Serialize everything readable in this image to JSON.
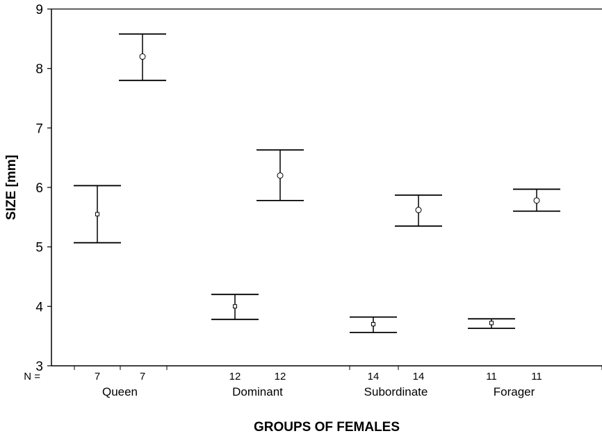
{
  "chart_data": {
    "type": "errorbar",
    "title": "",
    "xlabel": "GROUPS OF FEMALES",
    "ylabel": "SIZE [mm]",
    "ylim": [
      3,
      9
    ],
    "yticks": [
      "3",
      "4",
      "5",
      "6",
      "7",
      "8",
      "9"
    ],
    "n_prefix": "N =",
    "grid": false,
    "legend": "none",
    "groups": [
      {
        "name": "Queen",
        "points": [
          {
            "n": "7",
            "mean": 5.55,
            "low": 5.07,
            "high": 6.03,
            "marker": "square"
          },
          {
            "n": "7",
            "mean": 8.2,
            "low": 7.8,
            "high": 8.58,
            "marker": "circle"
          }
        ]
      },
      {
        "name": "Dominant",
        "points": [
          {
            "n": "12",
            "mean": 4.0,
            "low": 3.78,
            "high": 4.2,
            "marker": "square"
          },
          {
            "n": "12",
            "mean": 6.2,
            "low": 5.78,
            "high": 6.63,
            "marker": "circle"
          }
        ]
      },
      {
        "name": "Subordinate",
        "points": [
          {
            "n": "14",
            "mean": 3.7,
            "low": 3.56,
            "high": 3.82,
            "marker": "square"
          },
          {
            "n": "14",
            "mean": 5.62,
            "low": 5.35,
            "high": 5.87,
            "marker": "circle"
          }
        ]
      },
      {
        "name": "Forager",
        "points": [
          {
            "n": "11",
            "mean": 3.72,
            "low": 3.63,
            "high": 3.79,
            "marker": "square"
          },
          {
            "n": "11",
            "mean": 5.78,
            "low": 5.6,
            "high": 5.97,
            "marker": "circle"
          }
        ]
      }
    ]
  }
}
